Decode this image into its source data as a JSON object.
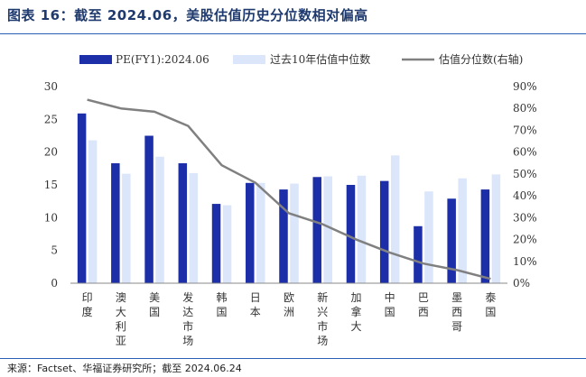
{
  "title": "图表 16：截至 2024.06，美股估值历史分位数相对偏高",
  "source": "来源：Factset、华福证券研究所；截至 2024.06.24",
  "colors": {
    "pe": "#1c2fa8",
    "median": "#dbe6fb",
    "percentile": "#808080",
    "rule": "#2b5fb4"
  },
  "chart_data": {
    "type": "bar",
    "categories": [
      "印度",
      "澳大利亚",
      "美国",
      "发达市场",
      "韩国",
      "日本",
      "欧洲",
      "新兴市场",
      "加拿大",
      "中国",
      "巴西",
      "墨西哥",
      "泰国"
    ],
    "series": [
      {
        "name": "PE(FY1):2024.06",
        "type": "bar",
        "axis": "left",
        "values": [
          25.9,
          18.3,
          22.5,
          18.3,
          12.1,
          15.3,
          14.3,
          16.2,
          15.0,
          15.6,
          8.7,
          12.9,
          14.3
        ]
      },
      {
        "name": "过去10年估值中位数",
        "type": "bar",
        "axis": "left",
        "values": [
          21.8,
          16.7,
          19.3,
          16.8,
          11.9,
          15.3,
          15.2,
          16.3,
          16.4,
          19.5,
          14.0,
          16.0,
          16.6
        ]
      },
      {
        "name": "估值分位数(右轴)",
        "type": "line",
        "axis": "right",
        "values": [
          84,
          80,
          78.5,
          72,
          54,
          46,
          32,
          27,
          20,
          14,
          9,
          6,
          2
        ]
      }
    ],
    "ylim": [
      0,
      30
    ],
    "yticks": [
      "0",
      "5",
      "10",
      "15",
      "20",
      "25",
      "30"
    ],
    "y2lim": [
      0,
      90
    ],
    "y2ticks": [
      "0%",
      "10%",
      "20%",
      "30%",
      "40%",
      "50%",
      "60%",
      "70%",
      "80%",
      "90%"
    ],
    "legend_position": "top"
  }
}
